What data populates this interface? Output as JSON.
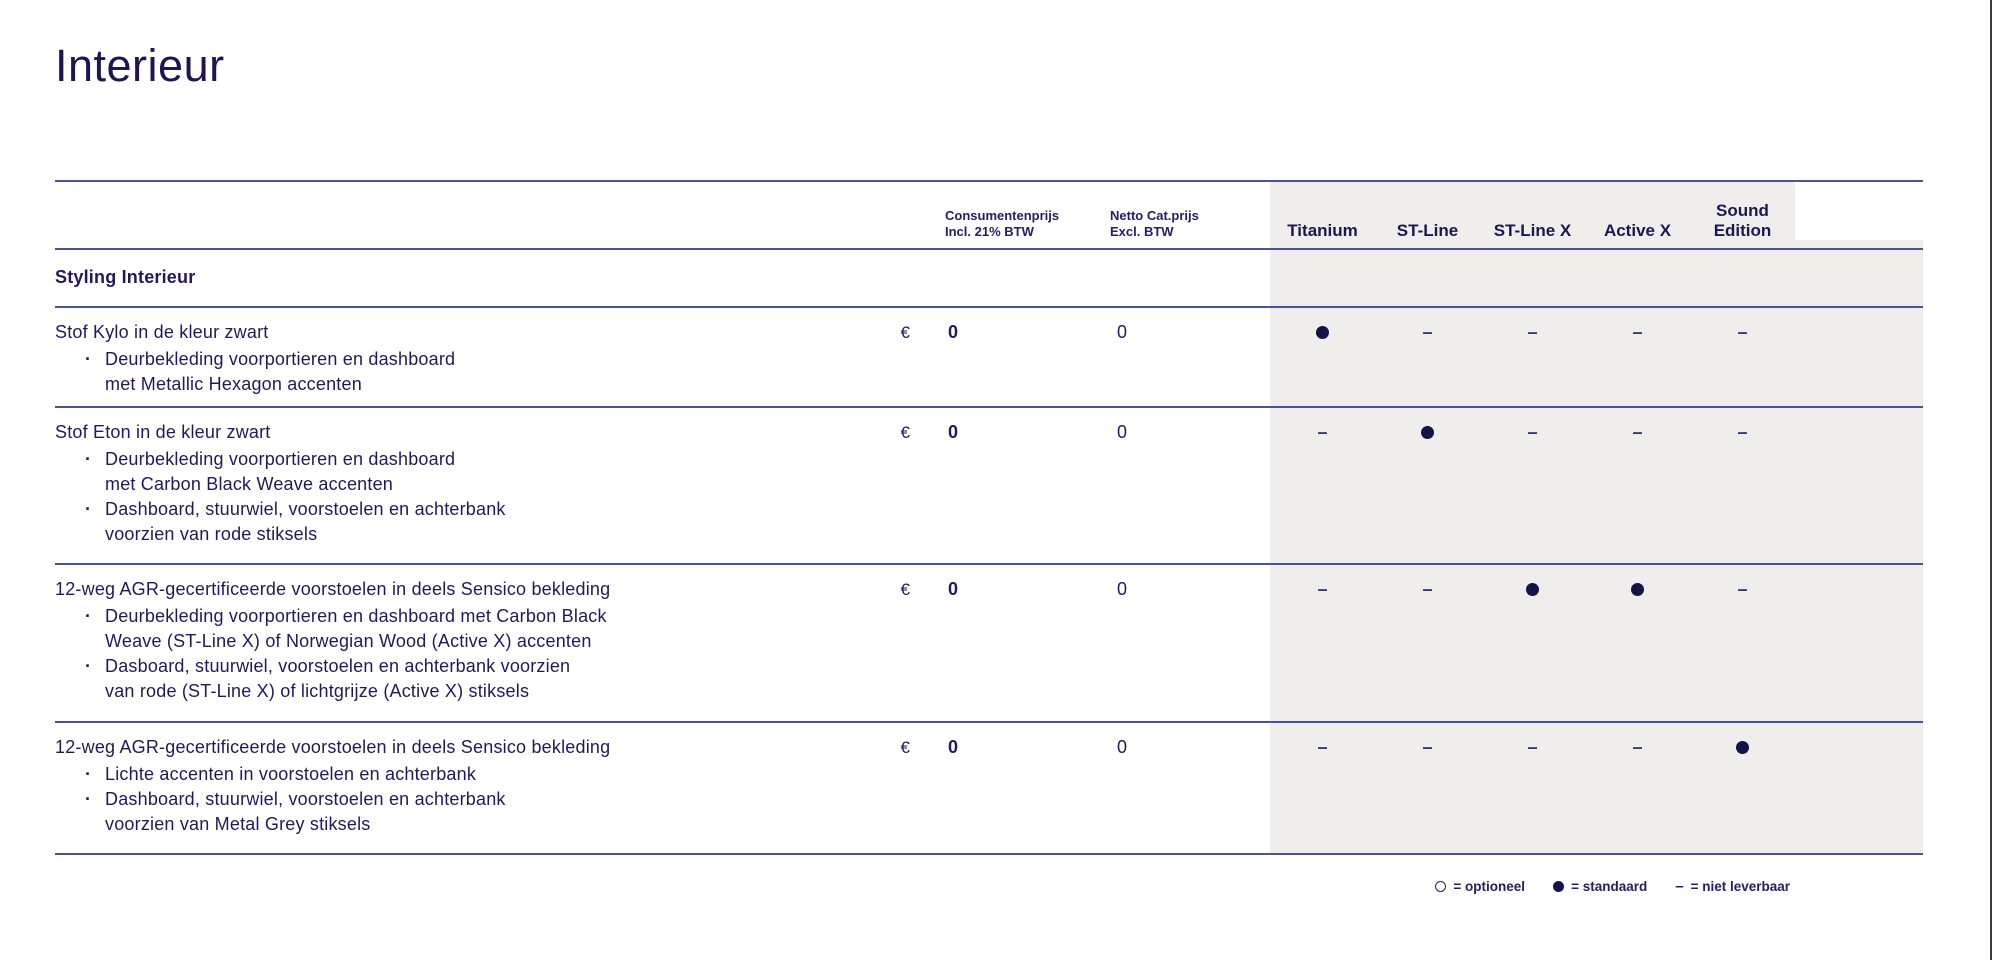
{
  "page": {
    "title": "Interieur",
    "colors": {
      "text_navy": "#1c1653",
      "rule_blue": "#4d5294",
      "panel_gray": "#efeeec",
      "page_edge": "#3a3a3a"
    }
  },
  "table": {
    "price_columns": [
      {
        "label": "Consumentenprijs\nIncl. 21% BTW"
      },
      {
        "label": "Netto Cat.prijs\nExcl. BTW"
      }
    ],
    "trim_columns": [
      "Titanium",
      "ST-Line",
      "ST-Line X",
      "Active X",
      "Sound Edition"
    ],
    "section_title": "Styling Interieur",
    "rows": [
      {
        "title": "Stof Kylo in de kleur zwart",
        "bullets": [
          "Deurbekleding voorportieren en dashboard\nmet Metallic Hexagon accenten"
        ],
        "currency": "€",
        "price_incl": "0",
        "price_excl": "0",
        "availability": [
          "standard",
          "na",
          "na",
          "na",
          "na"
        ]
      },
      {
        "title": "Stof Eton in de kleur zwart",
        "bullets": [
          "Deurbekleding voorportieren en dashboard\nmet Carbon Black Weave accenten",
          "Dashboard, stuurwiel, voorstoelen en achterbank\nvoorzien van rode stiksels"
        ],
        "currency": "€",
        "price_incl": "0",
        "price_excl": "0",
        "availability": [
          "na",
          "standard",
          "na",
          "na",
          "na"
        ]
      },
      {
        "title": "12-weg AGR-gecertificeerde voorstoelen in deels Sensico bekleding",
        "bullets": [
          "Deurbekleding voorportieren en dashboard met Carbon Black\nWeave (ST-Line X) of Norwegian Wood (Active X) accenten",
          "Dasboard, stuurwiel, voorstoelen en achterbank voorzien\nvan rode (ST-Line X) of lichtgrijze (Active X) stiksels"
        ],
        "currency": "€",
        "price_incl": "0",
        "price_excl": "0",
        "availability": [
          "na",
          "na",
          "standard",
          "standard",
          "na"
        ]
      },
      {
        "title": "12-weg AGR-gecertificeerde voorstoelen in deels Sensico bekleding",
        "bullets": [
          "Lichte accenten in voorstoelen en achterbank",
          "Dashboard, stuurwiel, voorstoelen en achterbank\nvoorzien van Metal Grey stiksels"
        ],
        "currency": "€",
        "price_incl": "0",
        "price_excl": "0",
        "availability": [
          "na",
          "na",
          "na",
          "na",
          "standard"
        ]
      }
    ],
    "legend": [
      {
        "symbol": "optional",
        "label": "= optioneel"
      },
      {
        "symbol": "standard",
        "label": "= standaard"
      },
      {
        "symbol": "na",
        "label": "= niet leverbaar",
        "dash": "–"
      }
    ],
    "na_glyph": "–",
    "bullet_glyph": "·"
  }
}
